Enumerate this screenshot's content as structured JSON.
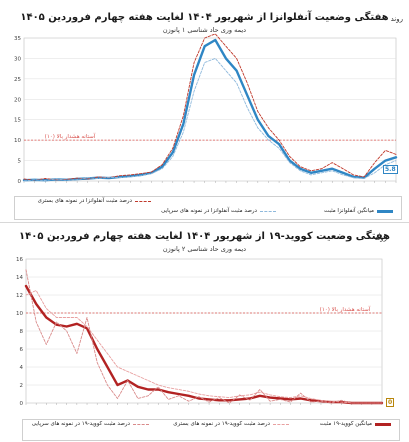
{
  "panel1": {
    "title_word": "روند",
    "title": "هفتگی وضعیت آنفلوانزا از شهریور ۱۴۰۴ لغایت هفته چهارم فروردین ۱۴۰۵",
    "subtitle": "دیمه وری حاد شناسی ۱ پانوزن",
    "threshold_label": "آستانه هشدار بالا (۱۰)",
    "end_label": "5.8",
    "legend": [
      "درصد مثبت آنفلوانزا در نمونه های بستری",
      "درصد مثبت آنفلوانزا در نمونه های سرپایی",
      "میانگین آنفلوانزا مثبت"
    ],
    "colors": {
      "avg": "#2f86c4",
      "inpatient": "#c0392b",
      "outpatient": "#8fb9dc",
      "threshold": "#d9534f"
    }
  },
  "panel2": {
    "title_word": "روند",
    "title": "هفتگی وضعیت کووید-۱۹ از شهریور ۱۴۰۴ لغایت هفته چهارم فروردین ۱۴۰۵",
    "subtitle": "دیمه وری حاد شناسی ۲ پانوزن",
    "threshold_label": "آستانه هشدار بالا (۱۰)",
    "end_label": "0",
    "legend": [
      "میانگین کووید-۱۹ مثبت",
      "درصد مثبت کووید-۱۹ در نمونه های بستری",
      "درصد مثبت کووید-۱۹ در نمونه های سرپایی"
    ],
    "colors": {
      "avg": "#b22222",
      "inpatient": "#e8a0a0",
      "outpatient": "#d98a8a",
      "threshold": "#d9534f"
    }
  },
  "chart_data": [
    {
      "type": "line",
      "title": "روند هفتگی وضعیت آنفلوانزا از شهریور ۱۴۰۴ لغایت هفته چهارم فروردین ۱۴۰۵",
      "ylim": [
        0,
        35
      ],
      "yticks": [
        0,
        5,
        10,
        15,
        20,
        25,
        30,
        35
      ],
      "threshold": 10,
      "grid": true,
      "x_count": 36,
      "series": [
        {
          "name": "میانگین آنفلوانزا مثبت",
          "values": [
            0.2,
            0.3,
            0.2,
            0.4,
            0.3,
            0.5,
            0.6,
            0.8,
            0.7,
            1.0,
            1.2,
            1.5,
            2.0,
            3.5,
            7.0,
            14.0,
            26.0,
            33.0,
            34.5,
            30.0,
            27.0,
            21.0,
            15.0,
            11.0,
            9.0,
            5.0,
            3.0,
            2.0,
            2.5,
            3.0,
            2.0,
            1.0,
            0.8,
            3.0,
            5.0,
            5.8
          ]
        },
        {
          "name": "درصد مثبت آنفلوانزا در نمونه های بستری",
          "values": [
            0.5,
            0.2,
            0.6,
            0.3,
            0.4,
            0.7,
            0.5,
            1.0,
            0.8,
            1.3,
            1.5,
            1.8,
            2.2,
            4.0,
            8.0,
            16.0,
            29.0,
            35.0,
            36.0,
            33.0,
            30.0,
            24.0,
            17.0,
            13.0,
            10.0,
            6.0,
            3.5,
            2.5,
            3.0,
            4.5,
            3.0,
            1.5,
            1.0,
            4.5,
            7.5,
            6.5
          ]
        },
        {
          "name": "درصد مثبت آنفلوانزا در نمونه های سرپایی",
          "values": [
            0.0,
            0.3,
            0.1,
            0.5,
            0.2,
            0.3,
            0.8,
            0.6,
            0.9,
            0.8,
            1.0,
            1.3,
            1.8,
            3.0,
            6.0,
            12.0,
            22.0,
            29.0,
            30.0,
            27.0,
            24.0,
            18.0,
            13.0,
            10.0,
            8.0,
            4.5,
            2.5,
            1.5,
            2.0,
            2.5,
            1.5,
            0.8,
            0.6,
            2.0,
            4.0,
            5.0
          ]
        }
      ]
    },
    {
      "type": "line",
      "title": "روند هفتگی وضعیت کووید-۱۹ از شهریور ۱۴۰۴ لغایت هفته چهارم فروردین ۱۴۰۵",
      "ylim": [
        0,
        16
      ],
      "yticks": [
        0,
        2,
        4,
        6,
        8,
        10,
        12,
        14,
        16
      ],
      "threshold": 10,
      "grid": true,
      "x_count": 36,
      "series": [
        {
          "name": "میانگین کووید-۱۹ مثبت",
          "values": [
            13.0,
            11.0,
            9.5,
            8.7,
            8.5,
            8.8,
            8.3,
            6.0,
            4.0,
            2.0,
            2.5,
            1.8,
            1.5,
            1.5,
            1.2,
            1.0,
            0.8,
            0.5,
            0.4,
            0.3,
            0.3,
            0.4,
            0.5,
            0.8,
            0.6,
            0.5,
            0.4,
            0.5,
            0.3,
            0.2,
            0.1,
            0.1,
            0.0,
            0.0,
            0.0,
            0.0
          ]
        },
        {
          "name": "درصد مثبت کووید-۱۹ در نمونه های بستری",
          "values": [
            12.0,
            12.5,
            10.5,
            9.5,
            9.5,
            9.5,
            8.5,
            7.0,
            5.5,
            4.0,
            3.5,
            3.0,
            2.5,
            2.0,
            1.7,
            1.5,
            1.3,
            1.0,
            0.8,
            0.7,
            0.6,
            0.8,
            0.9,
            1.2,
            0.9,
            0.7,
            0.6,
            0.8,
            0.5,
            0.3,
            0.2,
            0.1,
            0.0,
            0.0,
            0.0,
            0.0
          ]
        },
        {
          "name": "درصد مثبت کووید-۱۹ در نمونه های سرپایی",
          "values": [
            14.8,
            9.0,
            6.5,
            9.0,
            8.0,
            5.5,
            9.5,
            4.5,
            2.0,
            0.5,
            2.5,
            0.5,
            0.8,
            1.8,
            0.4,
            0.8,
            0.2,
            0.7,
            0.1,
            0.6,
            0.0,
            0.9,
            0.3,
            1.5,
            0.2,
            0.4,
            0.1,
            1.1,
            0.1,
            0.2,
            0.0,
            0.3,
            0.0,
            0.0,
            0.0,
            0.0
          ]
        }
      ]
    }
  ]
}
